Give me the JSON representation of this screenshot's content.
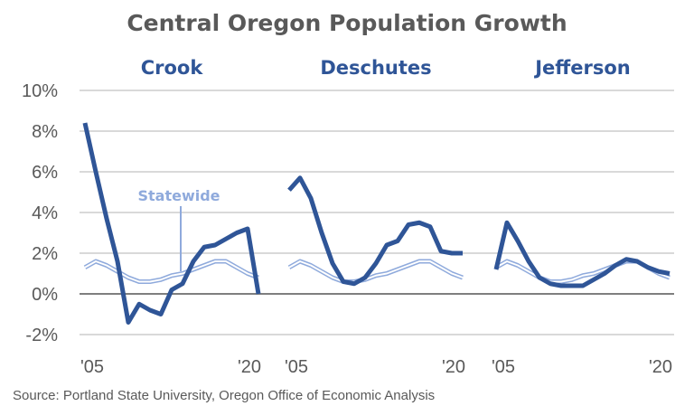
{
  "chart_data": {
    "type": "line",
    "title": "Central Oregon Population Growth",
    "source": "Source: Portland State University, Oregon Office of Economic Analysis",
    "ylim": [
      -2,
      10
    ],
    "yticks": [
      "-2%",
      "0%",
      "2%",
      "4%",
      "6%",
      "8%",
      "10%"
    ],
    "ytick_values": [
      -2,
      0,
      2,
      4,
      6,
      8,
      10
    ],
    "grid": true,
    "x": [
      2005,
      2006,
      2007,
      2008,
      2009,
      2010,
      2011,
      2012,
      2013,
      2014,
      2015,
      2016,
      2017,
      2018,
      2019,
      2020,
      2021
    ],
    "xtick_labels": [
      "'05",
      "'20"
    ],
    "statewide_label": "Statewide",
    "colors": {
      "county": "#2f5597",
      "statewide": "#8faadc",
      "grid": "#d9d9d9",
      "zero": "#7f7f7f"
    },
    "panels": [
      {
        "name": "Crook",
        "values": [
          8.4,
          6.0,
          3.7,
          1.6,
          -1.4,
          -0.5,
          -0.8,
          -1.0,
          0.2,
          0.5,
          1.6,
          2.3,
          2.4,
          2.7,
          3.0,
          3.2,
          0.0
        ]
      },
      {
        "name": "Deschutes",
        "values": [
          5.1,
          5.7,
          4.7,
          3.0,
          1.5,
          0.6,
          0.5,
          0.8,
          1.5,
          2.4,
          2.6,
          3.4,
          3.5,
          3.3,
          2.1,
          2.0,
          2.0
        ]
      },
      {
        "name": "Jefferson",
        "values": [
          1.2,
          3.5,
          2.6,
          1.6,
          0.8,
          0.5,
          0.4,
          0.4,
          0.4,
          0.7,
          1.0,
          1.4,
          1.7,
          1.6,
          1.3,
          1.1,
          1.0
        ]
      }
    ],
    "statewide": [
      1.3,
      1.6,
      1.4,
      1.1,
      0.8,
      0.6,
      0.6,
      0.7,
      0.9,
      1.0,
      1.2,
      1.4,
      1.6,
      1.6,
      1.3,
      1.0,
      0.8
    ]
  }
}
